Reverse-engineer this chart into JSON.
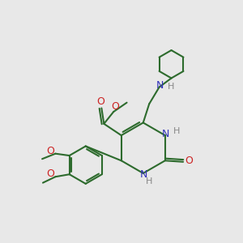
{
  "bg_color": "#e8e8e8",
  "bond_color": "#2d6b2d",
  "N_color": "#3333bb",
  "O_color": "#cc2222",
  "H_color": "#888888",
  "lw": 1.5,
  "fs": 8.5,
  "xlim": [
    0,
    10
  ],
  "ylim": [
    0,
    10
  ]
}
